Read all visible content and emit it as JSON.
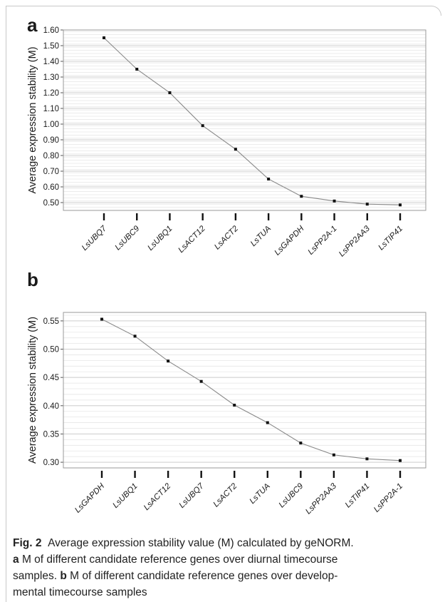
{
  "chart_data": [
    {
      "type": "line",
      "panel": "a",
      "ylabel": "Average expression stability (M)",
      "ylim": [
        0.45,
        1.6
      ],
      "yticks": [
        "0.50",
        "0.60",
        "0.70",
        "0.80",
        "0.90",
        "1.00",
        "1.10",
        "1.20",
        "1.30",
        "1.40",
        "1.50",
        "1.60"
      ],
      "categories": [
        "LsUBQ7",
        "LsUBC9",
        "LsUBQ1",
        "LsACT12",
        "LsACT2",
        "LsTUA",
        "LsGAPDH",
        "LsPP2A-1",
        "LsPP2AA3",
        "LsTIP41"
      ],
      "values": [
        1.55,
        1.35,
        1.2,
        0.99,
        0.84,
        0.65,
        0.54,
        0.51,
        0.49,
        0.485
      ],
      "grid": true
    },
    {
      "type": "line",
      "panel": "b",
      "ylabel": "Average expression stability (M)",
      "ylim": [
        0.29,
        0.565
      ],
      "yticks": [
        "0.30",
        "0.35",
        "0.40",
        "0.45",
        "0.50",
        "0.55"
      ],
      "categories": [
        "LsGAPDH",
        "LsUBQ1",
        "LsACT12",
        "LsUBQ7",
        "LsACT2",
        "LsTUA",
        "LsUBC9",
        "LsPP2AA3",
        "LsTIP41",
        "LsPP2A-1"
      ],
      "values": [
        0.553,
        0.523,
        0.479,
        0.443,
        0.401,
        0.37,
        0.334,
        0.313,
        0.306,
        0.303
      ],
      "grid": true
    }
  ],
  "caption": {
    "fig_label": "Fig. 2",
    "line1_text": "Average expression stability value (M) calculated by geNORM.",
    "a_label": "a",
    "line2_text": "M of different candidate reference genes over diurnal timecourse",
    "line3_text": "samples.",
    "b_label": "b",
    "line3_rest": "M of different candidate reference genes over develop-",
    "line4_text": "mental timecourse samples"
  }
}
